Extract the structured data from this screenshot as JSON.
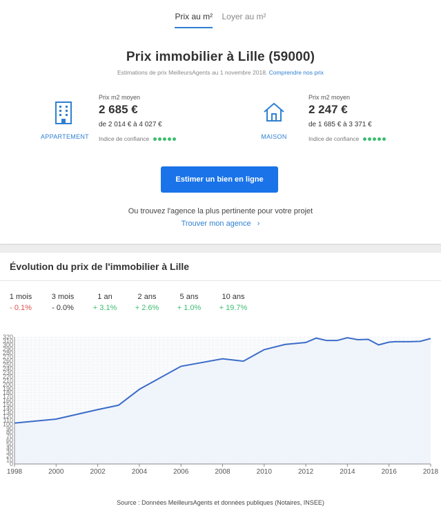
{
  "tabs": [
    {
      "label": "Prix au m²",
      "active": true
    },
    {
      "label": "Loyer au m²",
      "active": false
    }
  ],
  "header": {
    "title": "Prix immobilier à Lille (59000)",
    "subtitle": "Estimations de prix MeilleursAgents au 1 novembre 2018.",
    "subtitle_link": "Comprendre nos prix"
  },
  "appartement": {
    "type_label": "APPARTEMENT",
    "price_label": "Prix m2 moyen",
    "price": "2 685 €",
    "range": "de 2 014 € à 4 027 €",
    "confidence_label": "Indice de confiance",
    "confidence_dots": 5
  },
  "maison": {
    "type_label": "MAISON",
    "price_label": "Prix m2 moyen",
    "price": "2 247 €",
    "range": "de 1 685 € à 3 371 €",
    "confidence_label": "Indice de confiance",
    "confidence_dots": 5
  },
  "cta": {
    "label": "Estimer un bien en ligne"
  },
  "agency": {
    "text": "Ou trouvez l'agence la plus pertinente pour votre projet",
    "link": "Trouver mon agence",
    "chevron": "›"
  },
  "evolution": {
    "title": "Évolution du prix de l'immobilier à Lille",
    "periods": [
      {
        "label": "1 mois",
        "value": "- 0.1%",
        "trend": "neg"
      },
      {
        "label": "3 mois",
        "value": "- 0.0%",
        "trend": "zero"
      },
      {
        "label": "1 an",
        "value": "+ 3.1%",
        "trend": "pos"
      },
      {
        "label": "2 ans",
        "value": "+ 2.6%",
        "trend": "pos"
      },
      {
        "label": "5 ans",
        "value": "+ 1.0%",
        "trend": "pos"
      },
      {
        "label": "10 ans",
        "value": "+ 19.7%",
        "trend": "pos"
      }
    ],
    "source": "Source : Données MeilleursAgents et données publiques (Notaires, INSEE)"
  },
  "colors": {
    "accent": "#2f7fd1",
    "button": "#1a73e8",
    "positive": "#3bbd6f",
    "negative": "#e0514b",
    "line": "#3a6cc8",
    "area": "#eef3fb"
  },
  "chart_data": {
    "type": "area",
    "x": [
      1998,
      2000,
      2001,
      2002,
      2003,
      2004,
      2006,
      2008,
      2009,
      2010,
      2011,
      2012,
      2012.5,
      2013,
      2013.5,
      2014,
      2014.5,
      2015,
      2015.5,
      2016,
      2016.3,
      2016.7,
      2017,
      2017.5,
      2018
    ],
    "values": [
      103,
      113,
      125,
      137,
      148,
      188,
      246,
      265,
      259,
      288,
      301,
      306,
      317,
      311,
      311,
      318,
      313,
      314,
      300,
      307,
      308,
      308,
      308,
      309,
      316
    ],
    "x_ticks": [
      "1998",
      "2000",
      "2002",
      "2004",
      "2006",
      "2008",
      "2010",
      "2012",
      "2014",
      "2016",
      "2018"
    ],
    "y_ticks": [
      "0",
      "10",
      "20",
      "30",
      "40",
      "50",
      "60",
      "70",
      "80",
      "90",
      "100",
      "110",
      "120",
      "130",
      "140",
      "150",
      "160",
      "170",
      "180",
      "190",
      "200",
      "210",
      "220",
      "230",
      "240",
      "250",
      "260",
      "270",
      "280",
      "290",
      "300",
      "310",
      "320"
    ],
    "xlim": [
      1998,
      2018
    ],
    "ylim": [
      0,
      320
    ],
    "grid": true
  }
}
